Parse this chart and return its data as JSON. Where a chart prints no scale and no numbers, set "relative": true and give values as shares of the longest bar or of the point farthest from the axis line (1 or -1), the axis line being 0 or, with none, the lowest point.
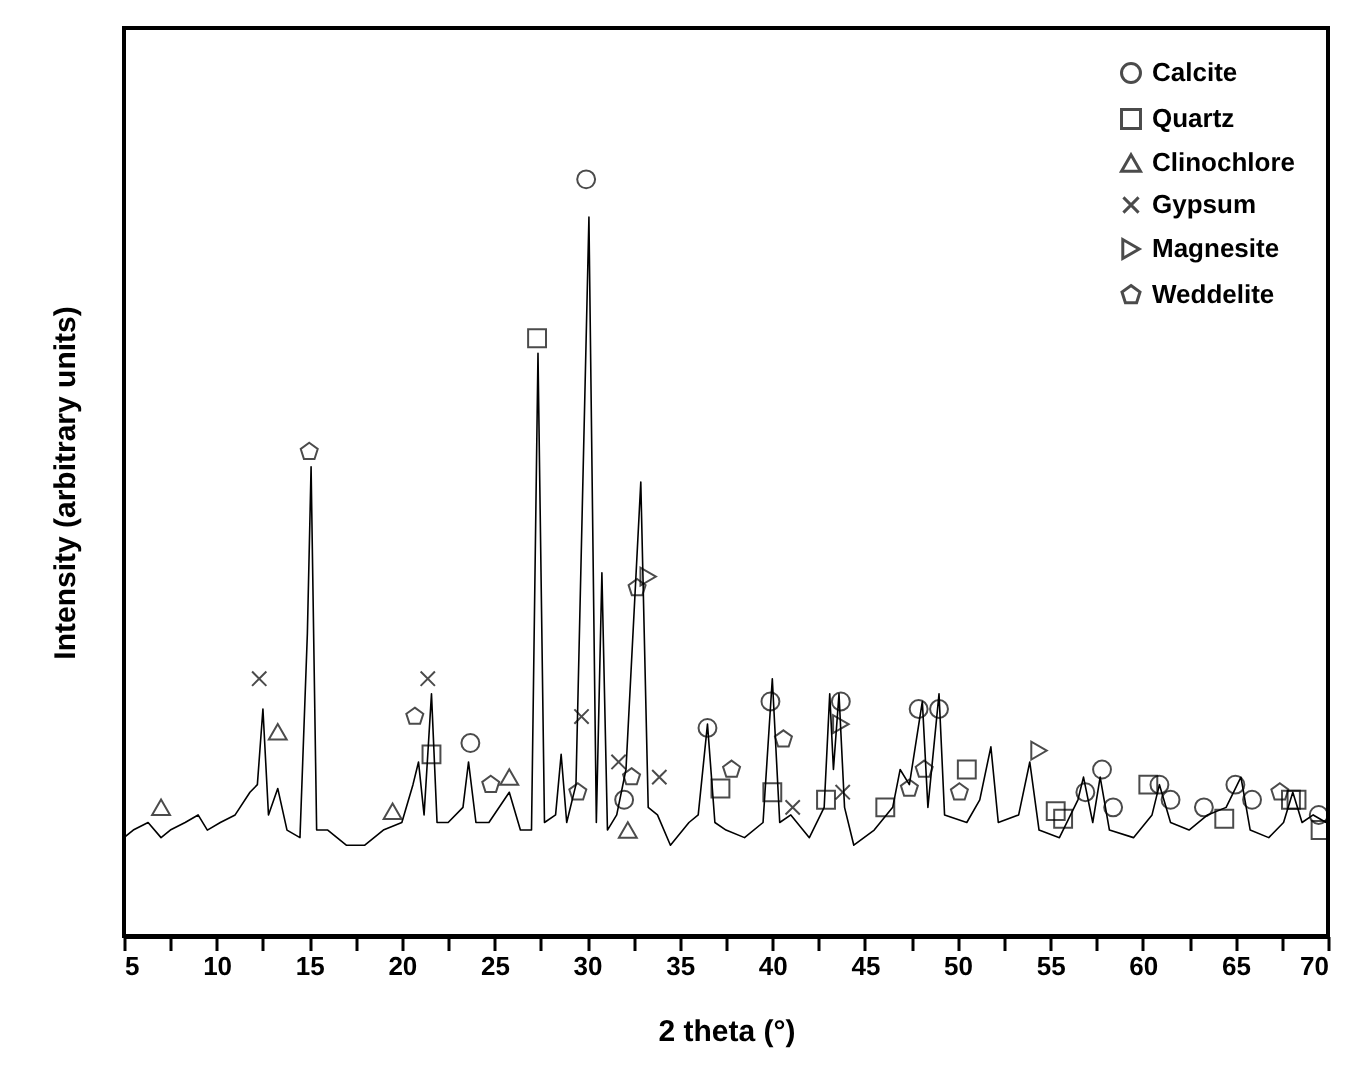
{
  "chart_data": {
    "type": "line",
    "xlabel": "2 theta (°)",
    "ylabel": "Intensity (arbitrary units)",
    "relative": true,
    "legend": "top right",
    "tick_labels": "x",
    "xlim": [
      5,
      70
    ],
    "xticks": [
      5,
      {
        "value": 7.5,
        "label": null
      },
      10,
      {
        "value": 12.5,
        "label": null
      },
      15,
      {
        "value": 17.5,
        "label": null
      },
      20,
      {
        "value": 22.5,
        "label": null
      },
      25,
      {
        "value": 27.5,
        "label": null
      },
      30,
      {
        "value": 32.5,
        "label": null
      },
      35,
      {
        "value": 37.5,
        "label": null
      },
      40,
      {
        "value": 42.5,
        "label": null
      },
      45,
      {
        "value": 47.5,
        "label": null
      },
      50,
      {
        "value": 52.5,
        "label": null
      },
      55,
      {
        "value": 57.5,
        "label": null
      },
      60,
      {
        "value": 62.5,
        "label": null
      },
      65,
      {
        "value": 67.5,
        "label": null
      },
      70
    ],
    "series": [
      {
        "type": "line",
        "color": "#000000",
        "marker": "none",
        "x": [
          5.0,
          5.5,
          6.3,
          7,
          7.5,
          8.3,
          9,
          9.5,
          10.2,
          11,
          11.8,
          12.2,
          12.5,
          12.8,
          13.3,
          13.8,
          14.5,
          14.9,
          15.1,
          15.4,
          16,
          17,
          18,
          19,
          20,
          20.6,
          20.9,
          21.2,
          21.6,
          21.9,
          22.5,
          23.3,
          23.6,
          24,
          24.7,
          25.8,
          26.4,
          27.0,
          27.35,
          27.7,
          28.3,
          28.6,
          28.9,
          29.4,
          30.1,
          30.5,
          30.8,
          31.1,
          31.6,
          32.1,
          32.9,
          33.3,
          33.8,
          34.5,
          35.5,
          36.0,
          36.5,
          36.9,
          37.5,
          38.5,
          39.5,
          40.0,
          40.4,
          41,
          42,
          42.8,
          43.1,
          43.3,
          43.6,
          43.9,
          44.4,
          45.5,
          46.5,
          46.9,
          47.4,
          48.1,
          48.4,
          49.0,
          49.3,
          50.5,
          51.2,
          51.8,
          52.2,
          53.3,
          53.9,
          54.4,
          55.5,
          56.5,
          56.8,
          57.3,
          57.7,
          58.2,
          59.5,
          60.5,
          60.9,
          61.5,
          62.5,
          63.5,
          64.5,
          65.3,
          65.8,
          66.8,
          67.6,
          68.1,
          68.6,
          69.2,
          69.9
        ],
        "values": [
          0.13,
          0.14,
          0.15,
          0.13,
          0.14,
          0.15,
          0.16,
          0.14,
          0.15,
          0.16,
          0.19,
          0.2,
          0.3,
          0.16,
          0.195,
          0.14,
          0.13,
          0.4,
          0.62,
          0.14,
          0.14,
          0.12,
          0.12,
          0.14,
          0.15,
          0.2,
          0.23,
          0.16,
          0.32,
          0.15,
          0.15,
          0.17,
          0.23,
          0.15,
          0.15,
          0.19,
          0.14,
          0.14,
          0.77,
          0.15,
          0.16,
          0.24,
          0.15,
          0.2,
          0.95,
          0.15,
          0.48,
          0.14,
          0.16,
          0.22,
          0.6,
          0.17,
          0.16,
          0.12,
          0.15,
          0.16,
          0.28,
          0.15,
          0.14,
          0.13,
          0.15,
          0.34,
          0.15,
          0.16,
          0.13,
          0.17,
          0.32,
          0.22,
          0.32,
          0.17,
          0.12,
          0.14,
          0.17,
          0.22,
          0.2,
          0.31,
          0.17,
          0.32,
          0.16,
          0.15,
          0.18,
          0.25,
          0.15,
          0.16,
          0.23,
          0.14,
          0.13,
          0.18,
          0.21,
          0.15,
          0.21,
          0.14,
          0.13,
          0.16,
          0.2,
          0.15,
          0.14,
          0.16,
          0.17,
          0.21,
          0.14,
          0.13,
          0.15,
          0.19,
          0.15,
          0.16,
          0.15
        ]
      },
      {
        "type": "scatter",
        "name": "Calcite",
        "color": "#000000",
        "marker": "circle",
        "x": [
          29.95,
          23.7,
          32.0,
          36.5,
          39.9,
          43.7,
          47.9,
          49.0,
          56.9,
          57.8,
          58.4,
          60.9,
          61.5,
          63.3,
          65.0,
          65.9,
          69.5
        ],
        "values": [
          1.0,
          0.255,
          0.18,
          0.275,
          0.31,
          0.31,
          0.3,
          0.3,
          0.19,
          0.22,
          0.17,
          0.2,
          0.18,
          0.17,
          0.2,
          0.18,
          0.16
        ]
      },
      {
        "type": "scatter",
        "name": "Quartz",
        "color": "#000000",
        "marker": "square",
        "x": [
          27.3,
          21.6,
          37.2,
          40.0,
          42.9,
          46.1,
          50.5,
          55.3,
          55.7,
          60.3,
          64.4,
          68.0,
          68.3,
          69.6
        ],
        "values": [
          0.79,
          0.24,
          0.195,
          0.19,
          0.18,
          0.17,
          0.22,
          0.165,
          0.155,
          0.2,
          0.155,
          0.18,
          0.18,
          0.14
        ]
      },
      {
        "type": "scatter",
        "name": "Clinochlore",
        "color": "#000000",
        "marker": "triangle",
        "x": [
          7.0,
          13.3,
          19.5,
          25.8,
          32.2
        ],
        "values": [
          0.17,
          0.27,
          0.165,
          0.21,
          0.14
        ]
      },
      {
        "type": "scatter",
        "name": "Gypsum",
        "color": "#000000",
        "marker": "cross",
        "x": [
          12.3,
          21.4,
          29.7,
          31.7,
          33.9,
          41.1,
          43.8
        ],
        "values": [
          0.34,
          0.34,
          0.29,
          0.23,
          0.21,
          0.17,
          0.19
        ]
      },
      {
        "type": "scatter",
        "name": "Magnesite",
        "color": "#000000",
        "marker": "triangle-right",
        "x": [
          33.3,
          43.7,
          54.4
        ],
        "values": [
          0.475,
          0.28,
          0.245
        ]
      },
      {
        "type": "scatter",
        "name": "Weddelite",
        "color": "#000000",
        "x": [
          15.0,
          20.7,
          24.8,
          29.5,
          32.7,
          32.4,
          37.8,
          40.6,
          48.2,
          47.4,
          50.1,
          67.4
        ],
        "values": [
          0.64,
          0.29,
          0.2,
          0.19,
          0.46,
          0.21,
          0.22,
          0.26,
          0.22,
          0.195,
          0.19,
          0.19
        ]
      }
    ]
  }
}
